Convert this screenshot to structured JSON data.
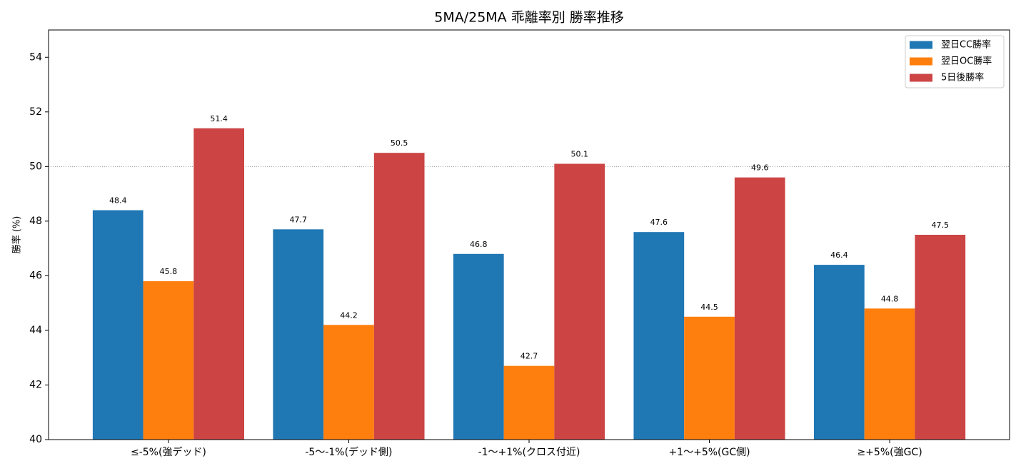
{
  "chart_data": {
    "type": "bar",
    "title": "5MA/25MA 乖離率別 勝率推移",
    "y_label": "勝率 (%)",
    "categories": [
      "≤-5%(強デッド)",
      "-5〜-1%(デッド側)",
      "-1〜+1%(クロス付近)",
      "+1〜+5%(GC側)",
      "≥+5%(強GC)"
    ],
    "series": [
      {
        "name": "翌日CC勝率",
        "color": "#1f77b4",
        "values": [
          48.4,
          47.7,
          46.8,
          47.6,
          46.4
        ]
      },
      {
        "name": "翌日OC勝率",
        "color": "#ff7f0e",
        "values": [
          45.8,
          44.2,
          42.7,
          44.5,
          44.8
        ]
      },
      {
        "name": "5日後勝率",
        "color": "#cc4444",
        "values": [
          51.4,
          50.5,
          50.1,
          49.6,
          47.5
        ]
      }
    ],
    "ylim": [
      40,
      55
    ],
    "yticks": [
      40,
      42,
      44,
      46,
      48,
      50,
      52,
      54
    ],
    "reference_line": 50,
    "legend": "upper-right"
  }
}
